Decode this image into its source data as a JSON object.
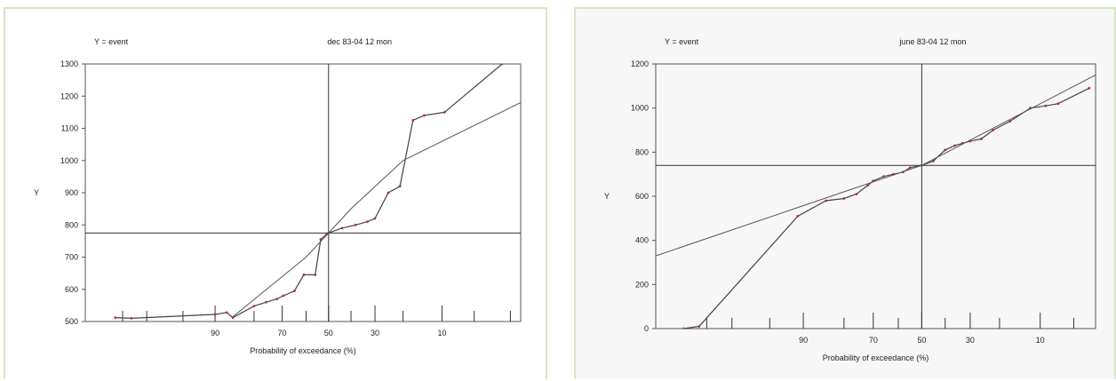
{
  "chart_data": [
    {
      "type": "line",
      "header_left": "Y = event",
      "title": "dec 83-04 12 mon",
      "ylabel": "Y",
      "xlabel": "Probability of exceedance (%)",
      "ylim": [
        500,
        1300
      ],
      "yticks": [
        "500",
        "600",
        "700",
        "800",
        "900",
        "1000",
        "1100",
        "1200",
        "1300"
      ],
      "xlim": [
        99.7,
        1.5
      ],
      "xticks": [
        {
          "value": 90,
          "label": "90"
        },
        {
          "value": 70,
          "label": "70"
        },
        {
          "value": 50,
          "label": "50"
        },
        {
          "value": 30,
          "label": "30"
        },
        {
          "value": 10,
          "label": "10"
        }
      ],
      "minor_ticks": [
        99,
        98,
        95,
        80,
        60,
        40,
        20,
        5,
        2
      ],
      "crosshair": {
        "x": 50,
        "y": 775
      },
      "series": [
        {
          "kind": "empirical",
          "x": [
            99.2,
            98.7,
            90.0,
            87.5,
            86.0,
            80.0,
            76.0,
            72.0,
            69.5,
            65.0,
            61.0,
            56.0,
            53.5,
            51.0,
            50.0,
            44.0,
            38.0,
            33.0,
            30.0,
            25.0,
            21.0,
            17.0,
            14.0,
            9.5,
            2.5
          ],
          "y": [
            512,
            510,
            522,
            528,
            512,
            548,
            560,
            570,
            580,
            595,
            645,
            645,
            755,
            770,
            775,
            790,
            800,
            810,
            820,
            900,
            920,
            1125,
            1140,
            1150,
            1300
          ]
        },
        {
          "kind": "fit",
          "x": [
            86.0,
            60.0,
            50.0,
            40.0,
            20.0,
            1.5
          ],
          "y": [
            515,
            700,
            775,
            850,
            1000,
            1180
          ]
        }
      ]
    },
    {
      "type": "line",
      "header_left": "Y = event",
      "title": "june 83-04 12 mon",
      "ylabel": "Y",
      "xlabel": "Probability of exceedance (%)",
      "ylim": [
        0,
        1200
      ],
      "yticks": [
        "0",
        "200",
        "400",
        "600",
        "800",
        "1000",
        "1200"
      ],
      "xlim": [
        99.8,
        3.0
      ],
      "xticks": [
        {
          "value": 90,
          "label": "90"
        },
        {
          "value": 70,
          "label": "70"
        },
        {
          "value": 50,
          "label": "50"
        },
        {
          "value": 30,
          "label": "30"
        },
        {
          "value": 10,
          "label": "10"
        }
      ],
      "minor_ticks": [
        99,
        98,
        95,
        80,
        60,
        40,
        20,
        5
      ],
      "crosshair": {
        "x": 50,
        "y": 740
      },
      "series": [
        {
          "kind": "empirical",
          "x": [
            99.5,
            99.2,
            91.0,
            85.0,
            80.0,
            76.0,
            72.0,
            70.0,
            66.0,
            62.0,
            58.0,
            55.0,
            50.0,
            45.0,
            40.0,
            36.0,
            33.0,
            30.0,
            26.0,
            22.0,
            17.0,
            12.0,
            9.0,
            7.0,
            3.5
          ],
          "y": [
            0,
            10,
            510,
            580,
            590,
            610,
            650,
            670,
            690,
            700,
            710,
            730,
            740,
            760,
            810,
            830,
            840,
            850,
            860,
            900,
            940,
            1000,
            1010,
            1020,
            1090
          ]
        },
        {
          "kind": "fit",
          "x": [
            99.8,
            50.0,
            3.0
          ],
          "y": [
            330,
            740,
            1150
          ]
        }
      ]
    }
  ]
}
